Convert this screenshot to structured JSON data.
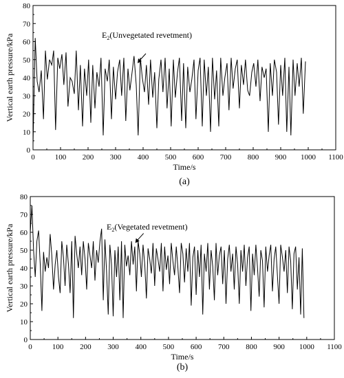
{
  "chart_data": [
    {
      "type": "line",
      "panel_label": "(a)",
      "xlabel": "Time/s",
      "ylabel": "Vertical earth pressure/kPa",
      "xlim": [
        0,
        1100
      ],
      "ylim": [
        0,
        80
      ],
      "xticks": [
        "0",
        "100",
        "200",
        "300",
        "400",
        "500",
        "600",
        "700",
        "800",
        "900",
        "1000",
        "1100"
      ],
      "yticks": [
        "0",
        "10",
        "20",
        "30",
        "40",
        "50",
        "60",
        "70",
        "80"
      ],
      "annotation": {
        "prefix": "E",
        "sub": "2",
        "suffix": "(Unvegetated revetment)",
        "points_to": [
          380,
          48
        ]
      },
      "series": [
        {
          "color": "#000000",
          "x": [
            0,
            8,
            15,
            22,
            30,
            38,
            45,
            52,
            60,
            68,
            75,
            82,
            90,
            97,
            105,
            112,
            120,
            127,
            135,
            142,
            150,
            157,
            165,
            172,
            180,
            187,
            195,
            202,
            210,
            217,
            225,
            232,
            240,
            247,
            255,
            262,
            270,
            277,
            285,
            292,
            300,
            307,
            315,
            322,
            330,
            337,
            345,
            352,
            360,
            367,
            375,
            382,
            390,
            397,
            405,
            412,
            420,
            427,
            435,
            442,
            450,
            457,
            465,
            472,
            480,
            487,
            495,
            502,
            510,
            517,
            525,
            532,
            540,
            547,
            555,
            562,
            570,
            577,
            585,
            592,
            600,
            607,
            615,
            622,
            630,
            637,
            645,
            652,
            660,
            667,
            675,
            682,
            690,
            697,
            705,
            712,
            720,
            727,
            735,
            742,
            750,
            757,
            765,
            772,
            780,
            787,
            795,
            802,
            810,
            817,
            825,
            832,
            840,
            847,
            855,
            862,
            870,
            877,
            885,
            892,
            900,
            907,
            915,
            922,
            930,
            937,
            945,
            952,
            960,
            967,
            975,
            982,
            990
          ],
          "y": [
            3,
            62,
            38,
            32,
            44,
            17,
            55,
            39,
            50,
            47,
            55,
            11,
            51,
            45,
            53,
            36,
            54,
            24,
            40,
            38,
            31,
            55,
            22,
            47,
            13,
            45,
            30,
            50,
            15,
            47,
            23,
            43,
            35,
            51,
            8,
            45,
            38,
            50,
            17,
            46,
            28,
            43,
            50,
            30,
            51,
            16,
            45,
            33,
            43,
            52,
            36,
            8,
            51,
            40,
            32,
            47,
            25,
            50,
            29,
            43,
            12,
            39,
            50,
            32,
            51,
            23,
            45,
            13,
            50,
            29,
            43,
            51,
            16,
            48,
            12,
            46,
            32,
            39,
            50,
            17,
            44,
            51,
            13,
            50,
            30,
            46,
            10,
            51,
            28,
            44,
            13,
            51,
            30,
            40,
            48,
            22,
            51,
            34,
            45,
            50,
            23,
            47,
            36,
            50,
            33,
            30,
            43,
            48,
            35,
            50,
            27,
            46,
            40,
            45,
            10,
            48,
            30,
            50,
            43,
            14,
            47,
            30,
            51,
            10,
            46,
            8,
            50,
            30,
            48,
            35,
            51,
            20,
            49
          ]
        }
      ]
    },
    {
      "type": "line",
      "panel_label": "(b)",
      "xlabel": "Time/s",
      "ylabel": "Vertical earth pressure/kPa",
      "xlim": [
        0,
        1100
      ],
      "ylim": [
        0,
        80
      ],
      "xticks": [
        "0",
        "100",
        "200",
        "300",
        "400",
        "500",
        "600",
        "700",
        "800",
        "900",
        "1000",
        "1100"
      ],
      "yticks": [
        "0",
        "10",
        "20",
        "30",
        "40",
        "50",
        "60",
        "70",
        "80"
      ],
      "annotation": {
        "prefix": "E",
        "sub": "2",
        "suffix": "(Vegetated revetment)",
        "points_to": [
          380,
          54
        ]
      },
      "series": [
        {
          "color": "#000000",
          "x": [
            0,
            6,
            12,
            18,
            24,
            30,
            36,
            42,
            48,
            54,
            60,
            66,
            72,
            78,
            84,
            90,
            96,
            102,
            108,
            114,
            120,
            126,
            132,
            138,
            144,
            150,
            156,
            162,
            168,
            174,
            180,
            186,
            192,
            198,
            204,
            210,
            216,
            222,
            228,
            234,
            240,
            246,
            252,
            258,
            264,
            270,
            276,
            282,
            288,
            294,
            300,
            306,
            312,
            318,
            324,
            330,
            336,
            342,
            348,
            354,
            360,
            366,
            372,
            378,
            384,
            390,
            396,
            402,
            408,
            414,
            420,
            426,
            432,
            438,
            444,
            450,
            456,
            462,
            468,
            474,
            480,
            486,
            492,
            498,
            504,
            510,
            516,
            522,
            528,
            534,
            540,
            546,
            552,
            558,
            564,
            570,
            576,
            582,
            588,
            594,
            600,
            606,
            612,
            618,
            624,
            630,
            636,
            642,
            648,
            654,
            660,
            666,
            672,
            678,
            684,
            690,
            696,
            702,
            708,
            714,
            720,
            726,
            732,
            738,
            744,
            750,
            756,
            762,
            768,
            774,
            780,
            786,
            792,
            798,
            804,
            810,
            816,
            822,
            828,
            834,
            840,
            846,
            852,
            858,
            864,
            870,
            876,
            882,
            888,
            894,
            900,
            906,
            912,
            918,
            924,
            930,
            936,
            942,
            948,
            954,
            960,
            966,
            972,
            978,
            984,
            990
          ],
          "y": [
            60,
            75,
            50,
            35,
            55,
            61,
            42,
            16,
            49,
            38,
            46,
            40,
            59,
            47,
            28,
            42,
            50,
            35,
            26,
            55,
            46,
            30,
            53,
            42,
            26,
            55,
            12,
            58,
            48,
            40,
            52,
            36,
            55,
            45,
            28,
            54,
            47,
            40,
            55,
            33,
            50,
            43,
            55,
            62,
            22,
            56,
            38,
            14,
            53,
            42,
            13,
            50,
            35,
            52,
            22,
            55,
            12,
            53,
            41,
            47,
            36,
            55,
            42,
            52,
            27,
            55,
            48,
            35,
            53,
            42,
            23,
            51,
            45,
            37,
            54,
            30,
            51,
            45,
            38,
            54,
            27,
            52,
            39,
            47,
            31,
            54,
            44,
            36,
            52,
            40,
            26,
            54,
            48,
            32,
            51,
            38,
            54,
            19,
            46,
            52,
            25,
            50,
            35,
            53,
            14,
            48,
            38,
            54,
            28,
            50,
            41,
            22,
            54,
            36,
            47,
            52,
            31,
            50,
            20,
            45,
            53,
            38,
            48,
            28,
            52,
            42,
            20,
            50,
            38,
            53,
            30,
            46,
            52,
            16,
            48,
            36,
            53,
            40,
            24,
            50,
            44,
            18,
            52,
            38,
            47,
            53,
            27,
            45,
            52,
            36,
            20,
            53,
            46,
            38,
            50,
            26,
            52,
            44,
            17,
            48,
            52,
            28,
            46,
            14,
            51,
            12
          ]
        }
      ]
    }
  ]
}
